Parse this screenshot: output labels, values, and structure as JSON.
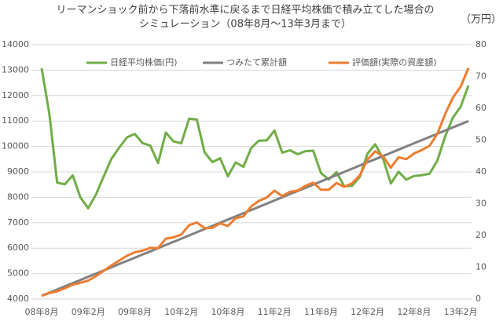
{
  "chart_data": {
    "type": "line",
    "title": "リーマンショック前から下落前水準に戻るまで日経平均株価で積み立てした場合の",
    "subtitle": "シミュレーション（08年8月～13年3月まで）",
    "y2_label": "（万円）",
    "categories": [
      "08年8月",
      null,
      null,
      null,
      null,
      null,
      "09年2月",
      null,
      null,
      null,
      null,
      null,
      "09年8月",
      null,
      null,
      null,
      null,
      null,
      "10年2月",
      null,
      null,
      null,
      null,
      null,
      "10年8月",
      null,
      null,
      null,
      null,
      null,
      "11年2月",
      null,
      null,
      null,
      null,
      null,
      "11年8月",
      null,
      null,
      null,
      null,
      null,
      "12年2月",
      null,
      null,
      null,
      null,
      null,
      "12年8月",
      null,
      null,
      null,
      null,
      null,
      "13年2月",
      null
    ],
    "ylim": [
      4000,
      14000
    ],
    "yticks": [
      4000,
      5000,
      6000,
      7000,
      8000,
      9000,
      10000,
      11000,
      12000,
      13000,
      14000
    ],
    "y2lim": [
      0,
      80
    ],
    "y2ticks": [
      0,
      10,
      20,
      30,
      40,
      50,
      60,
      70,
      80
    ],
    "grid": true,
    "legend": "top",
    "series": [
      {
        "name": "日経平均株価(円)",
        "color": "#70ad47",
        "values": [
          13073,
          11260,
          8577,
          8512,
          8860,
          7994,
          7568,
          8110,
          8828,
          9523,
          9958,
          10357,
          10493,
          10133,
          10035,
          9346,
          10546,
          10198,
          10126,
          11090,
          11057,
          9768,
          9383,
          9537,
          8824,
          9369,
          9202,
          9937,
          10229,
          10237,
          10624,
          9755,
          9850,
          9694,
          9816,
          9833,
          8955,
          8700,
          8988,
          8434,
          8455,
          8803,
          9723,
          10083,
          9521,
          8543,
          9007,
          8695,
          8840,
          8870,
          8928,
          9446,
          10395,
          11139,
          11559,
          12398
        ]
      },
      {
        "name": "つみたて累計額",
        "color": "#808080",
        "axis": "y2",
        "values": [
          1,
          2,
          3,
          4,
          5,
          6,
          7,
          8,
          9,
          10,
          11,
          12,
          13,
          14,
          15,
          16,
          17,
          18,
          19,
          20,
          21,
          22,
          23,
          24,
          25,
          26,
          27,
          28,
          29,
          30,
          31,
          32,
          33,
          34,
          35,
          36,
          37,
          38,
          39,
          40,
          41,
          42,
          43,
          44,
          45,
          46,
          47,
          48,
          49,
          50,
          51,
          52,
          53,
          54,
          55,
          56
        ]
      },
      {
        "name": "評価額(実際の資産額)",
        "color": "#ed7d31",
        "axis": "y2",
        "values": [
          1.0,
          1.9,
          2.4,
          3.4,
          4.5,
          5.1,
          5.8,
          7.2,
          8.9,
          10.6,
          12.1,
          13.6,
          14.7,
          15.2,
          16.1,
          16.0,
          19.0,
          19.4,
          20.3,
          23.2,
          24.1,
          22.3,
          22.4,
          23.8,
          23.0,
          25.4,
          26.0,
          29.1,
          30.9,
          31.9,
          34.1,
          32.4,
          33.7,
          34.1,
          35.6,
          36.6,
          34.4,
          34.4,
          36.5,
          35.3,
          36.4,
          38.9,
          43.9,
          46.5,
          44.9,
          41.3,
          44.6,
          44.0,
          45.8,
          46.9,
          48.2,
          52.0,
          58.2,
          63.4,
          66.8,
          72.7
        ]
      }
    ]
  }
}
